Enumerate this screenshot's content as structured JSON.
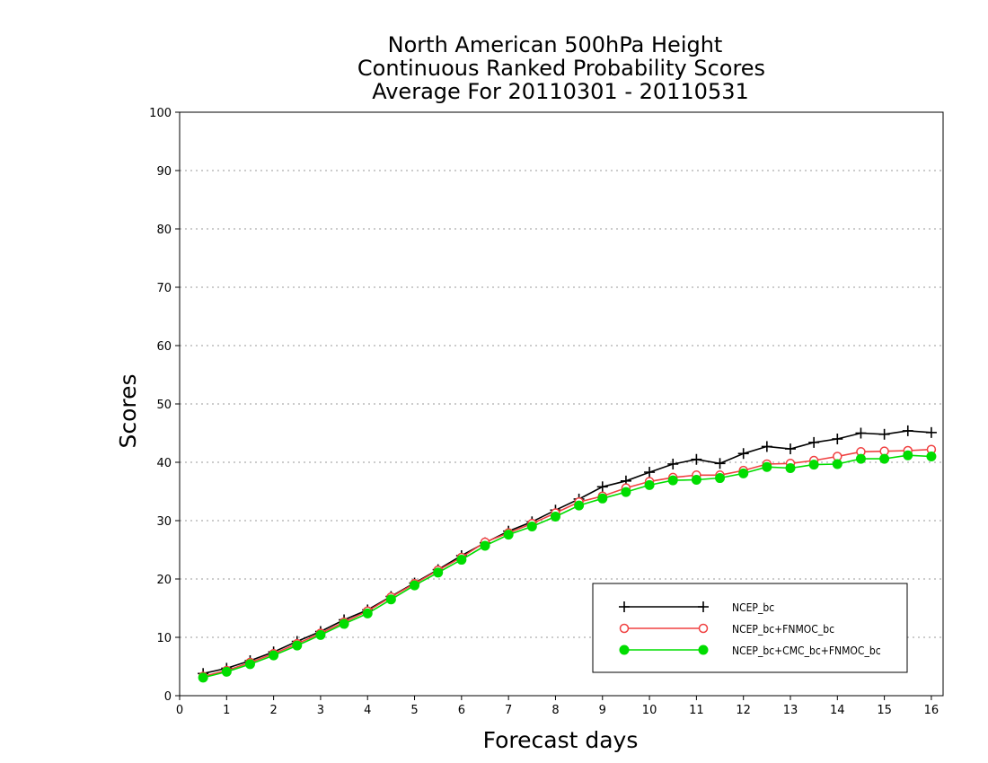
{
  "chart_data": {
    "type": "line",
    "title": [
      "North American 500hPa Height",
      "Continuous Ranked Probability Scores",
      "Average For 20110301 - 20110531"
    ],
    "xlabel": "Forecast days",
    "ylabel": "Scores",
    "xlim": [
      0,
      16.25
    ],
    "ylim": [
      0,
      100
    ],
    "x_ticks": [
      0,
      1,
      2,
      3,
      4,
      5,
      6,
      7,
      8,
      9,
      10,
      11,
      12,
      13,
      14,
      15,
      16
    ],
    "y_ticks": [
      0,
      10,
      20,
      30,
      40,
      50,
      60,
      70,
      80,
      90,
      100
    ],
    "grid": "horizontal dotted",
    "legend_position": "bottom-right",
    "x": [
      0.5,
      1,
      1.5,
      2,
      2.5,
      3,
      3.5,
      4,
      4.5,
      5,
      5.5,
      6,
      6.5,
      7,
      7.5,
      8,
      8.5,
      9,
      9.5,
      10,
      10.5,
      11,
      11.5,
      12,
      12.5,
      13,
      13.5,
      14,
      14.5,
      15,
      15.5,
      16
    ],
    "series": [
      {
        "name": "NCEP_bc",
        "color": "#000000",
        "marker": "plus",
        "values": [
          3.8,
          4.7,
          6.0,
          7.5,
          9.3,
          11.0,
          13.0,
          14.7,
          17.0,
          19.3,
          21.6,
          24.0,
          26.2,
          28.2,
          29.8,
          31.8,
          33.7,
          35.8,
          36.8,
          38.3,
          39.7,
          40.5,
          39.8,
          41.5,
          42.7,
          42.3,
          43.4,
          44.0,
          45.0,
          44.8,
          45.4,
          45.1
        ]
      },
      {
        "name": "NCEP_bc+FNMOC_bc",
        "color": "#f04040",
        "marker": "open-circle",
        "values": [
          3.3,
          4.3,
          5.7,
          7.2,
          8.9,
          10.7,
          12.6,
          14.5,
          16.9,
          19.2,
          21.5,
          23.7,
          26.3,
          27.9,
          29.5,
          31.3,
          33.2,
          34.2,
          35.6,
          36.7,
          37.4,
          37.8,
          37.8,
          38.6,
          39.7,
          39.8,
          40.3,
          41.0,
          41.8,
          41.9,
          42.0,
          42.2
        ]
      },
      {
        "name": "NCEP_bc+CMC_bc+FNMOC_bc",
        "color": "#00dd00",
        "marker": "filled-circle",
        "values": [
          3.1,
          4.1,
          5.4,
          6.9,
          8.6,
          10.4,
          12.3,
          14.1,
          16.5,
          18.9,
          21.1,
          23.3,
          25.7,
          27.6,
          29.0,
          30.7,
          32.6,
          33.8,
          34.9,
          36.1,
          36.9,
          37.0,
          37.3,
          38.1,
          39.2,
          39.0,
          39.6,
          39.7,
          40.6,
          40.6,
          41.2,
          41.0
        ]
      }
    ]
  }
}
